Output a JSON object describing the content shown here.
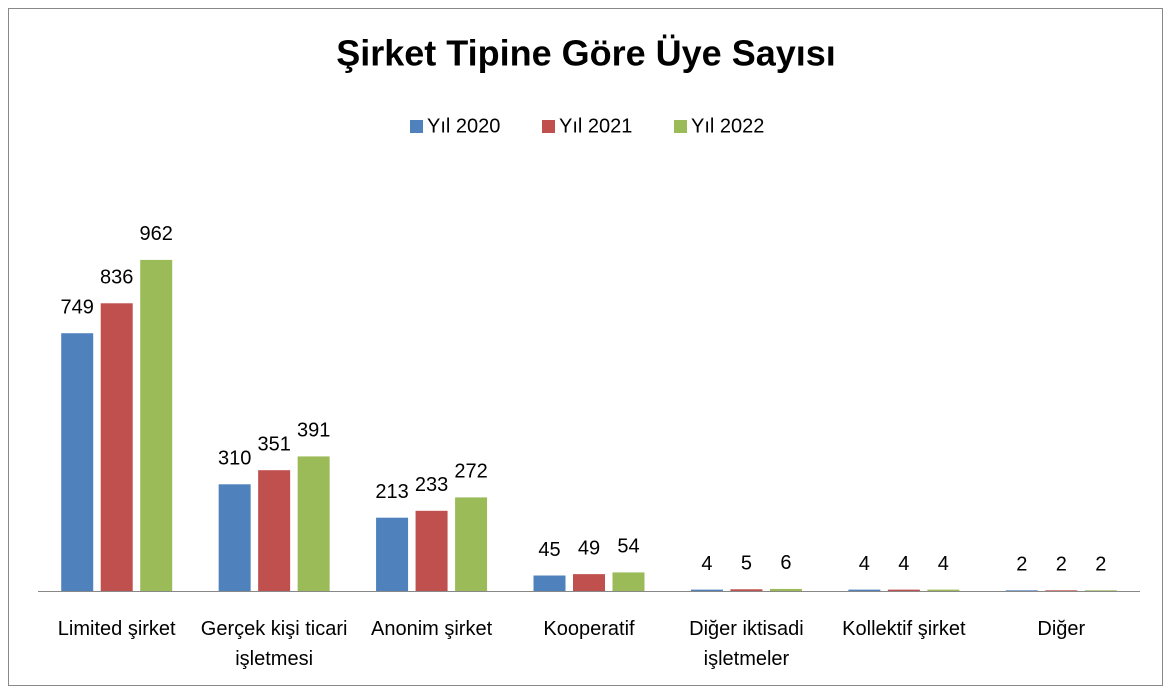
{
  "chart_data": {
    "type": "bar",
    "title": "Şirket Tipine Göre Üye Sayısı",
    "categories": [
      "Limited şirket",
      "Gerçek kişi ticari işletmesi",
      "Anonim şirket",
      "Kooperatif",
      "Diğer iktisadi işletmeler",
      "Kollektif şirket",
      "Diğer"
    ],
    "series": [
      {
        "name": "Yıl 2020",
        "color": "#4f81bd",
        "values": [
          749,
          310,
          213,
          45,
          4,
          4,
          2
        ]
      },
      {
        "name": "Yıl 2021",
        "color": "#c0504d",
        "values": [
          836,
          351,
          233,
          49,
          5,
          4,
          2
        ]
      },
      {
        "name": "Yıl 2022",
        "color": "#9bbb59",
        "values": [
          962,
          391,
          272,
          54,
          6,
          4,
          2
        ]
      }
    ],
    "ylim": [
      0,
      1200
    ],
    "legend": "top"
  }
}
